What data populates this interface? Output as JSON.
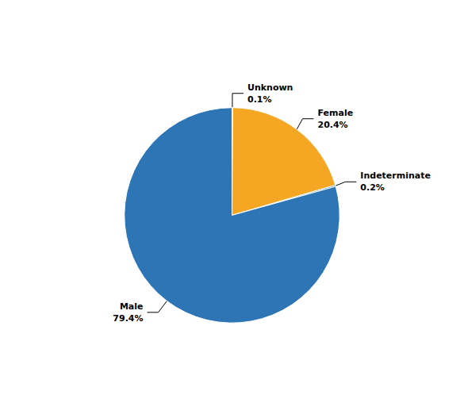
{
  "chart_data": {
    "type": "pie",
    "categories": [
      "Unknown",
      "Female",
      "Indeterminate",
      "Male"
    ],
    "values": [
      0.1,
      20.4,
      0.2,
      79.4
    ],
    "value_labels": [
      "0.1%",
      "20.4%",
      "0.2%",
      "79.4%"
    ],
    "colors": [
      "#2E75B6",
      "#F5A623",
      "#2E75B6",
      "#2E75B6"
    ],
    "data_labels": true
  }
}
